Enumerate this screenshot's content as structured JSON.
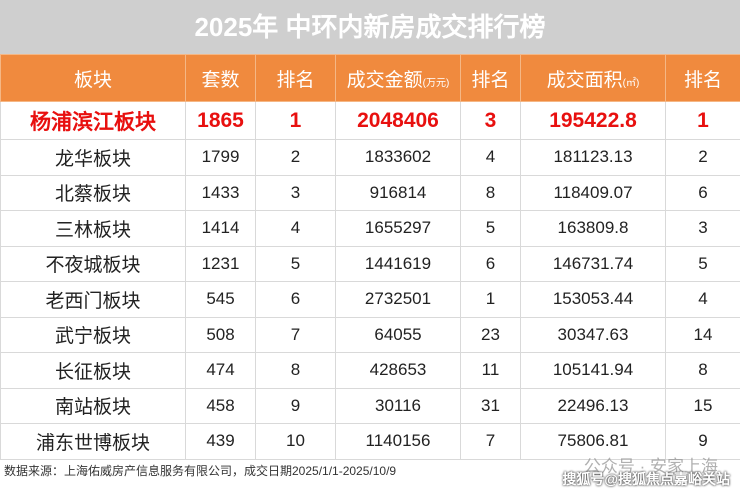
{
  "title": "2025年 中环内新房成交排行榜",
  "table": {
    "headers": [
      {
        "text": "板块"
      },
      {
        "text": "套数"
      },
      {
        "text": "排名"
      },
      {
        "text": "成交金额",
        "unit": "(万元)"
      },
      {
        "text": "排名"
      },
      {
        "text": "成交面积",
        "unit": "(㎡)"
      },
      {
        "text": "排名"
      }
    ],
    "rows": [
      [
        "杨浦滨江板块",
        "1865",
        "1",
        "2048406",
        "3",
        "195422.8",
        "1"
      ],
      [
        "龙华板块",
        "1799",
        "2",
        "1833602",
        "4",
        "181123.13",
        "2"
      ],
      [
        "北蔡板块",
        "1433",
        "3",
        "916814",
        "8",
        "118409.07",
        "6"
      ],
      [
        "三林板块",
        "1414",
        "4",
        "1655297",
        "5",
        "163809.8",
        "3"
      ],
      [
        "不夜城板块",
        "1231",
        "5",
        "1441619",
        "6",
        "146731.74",
        "5"
      ],
      [
        "老西门板块",
        "545",
        "6",
        "2732501",
        "1",
        "153053.44",
        "4"
      ],
      [
        "武宁板块",
        "508",
        "7",
        "64055",
        "23",
        "30347.63",
        "14"
      ],
      [
        "长征板块",
        "474",
        "8",
        "428653",
        "11",
        "105141.94",
        "8"
      ],
      [
        "南站板块",
        "458",
        "9",
        "30116",
        "31",
        "22496.13",
        "15"
      ],
      [
        "浦东世博板块",
        "439",
        "10",
        "1140156",
        "7",
        "75806.81",
        "9"
      ]
    ]
  },
  "footer": "数据来源：上海佑威房产信息服务有限公司，成交日期2025/1/1-2025/10/9",
  "watermark": {
    "line1": "公众号 · 安家上海",
    "line2": "搜狐号@搜狐焦点嘉峪关站"
  }
}
